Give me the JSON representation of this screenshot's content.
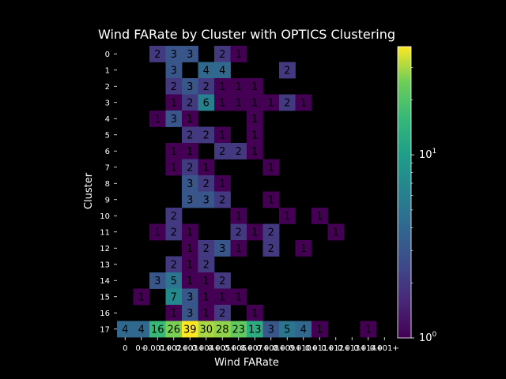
{
  "chart_data": {
    "type": "heatmap",
    "title": "Wind FARate by Cluster with OPTICS Clustering",
    "xlabel": "Wind FARate",
    "ylabel": "Cluster",
    "x_ticks": [
      "0",
      "0+",
      "0.001+",
      "0.002+",
      "0.003+",
      "0.004+",
      "0.005+",
      "0.006+",
      "0.007+",
      "0.008+",
      "0.009+",
      "0.010+",
      "0.011+",
      "0.012+",
      "0.013+",
      "0.014+",
      "0.001+"
    ],
    "y_ticks": [
      "0",
      "1",
      "2",
      "3",
      "4",
      "5",
      "6",
      "7",
      "8",
      "9",
      "10",
      "11",
      "12",
      "13",
      "14",
      "15",
      "16",
      "17"
    ],
    "colorbar": {
      "scale": "log",
      "min": 1,
      "max": 39,
      "tick_labels": [
        "10^0",
        "10^1"
      ],
      "colormap": "viridis"
    },
    "cells": [
      [
        0,
        2,
        2
      ],
      [
        0,
        3,
        3
      ],
      [
        0,
        4,
        3
      ],
      [
        0,
        6,
        2
      ],
      [
        0,
        7,
        1
      ],
      [
        1,
        3,
        3
      ],
      [
        1,
        5,
        4
      ],
      [
        1,
        6,
        4
      ],
      [
        1,
        10,
        2
      ],
      [
        2,
        3,
        2
      ],
      [
        2,
        4,
        3
      ],
      [
        2,
        5,
        2
      ],
      [
        2,
        6,
        1
      ],
      [
        2,
        7,
        1
      ],
      [
        2,
        8,
        1
      ],
      [
        3,
        3,
        1
      ],
      [
        3,
        4,
        2
      ],
      [
        3,
        5,
        6
      ],
      [
        3,
        6,
        1
      ],
      [
        3,
        7,
        1
      ],
      [
        3,
        8,
        1
      ],
      [
        3,
        9,
        1
      ],
      [
        3,
        10,
        2
      ],
      [
        3,
        11,
        1
      ],
      [
        4,
        2,
        1
      ],
      [
        4,
        3,
        3
      ],
      [
        4,
        4,
        1
      ],
      [
        4,
        8,
        1
      ],
      [
        5,
        4,
        2
      ],
      [
        5,
        5,
        2
      ],
      [
        5,
        6,
        1
      ],
      [
        5,
        8,
        1
      ],
      [
        6,
        3,
        1
      ],
      [
        6,
        4,
        1
      ],
      [
        6,
        6,
        2
      ],
      [
        6,
        7,
        2
      ],
      [
        6,
        8,
        1
      ],
      [
        7,
        3,
        1
      ],
      [
        7,
        4,
        2
      ],
      [
        7,
        5,
        1
      ],
      [
        7,
        9,
        1
      ],
      [
        8,
        4,
        3
      ],
      [
        8,
        5,
        2
      ],
      [
        8,
        6,
        1
      ],
      [
        9,
        4,
        3
      ],
      [
        9,
        5,
        3
      ],
      [
        9,
        6,
        2
      ],
      [
        9,
        9,
        1
      ],
      [
        10,
        3,
        2
      ],
      [
        10,
        7,
        1
      ],
      [
        10,
        10,
        1
      ],
      [
        10,
        12,
        1
      ],
      [
        11,
        2,
        1
      ],
      [
        11,
        3,
        2
      ],
      [
        11,
        4,
        1
      ],
      [
        11,
        7,
        2
      ],
      [
        11,
        8,
        1
      ],
      [
        11,
        9,
        2
      ],
      [
        11,
        13,
        1
      ],
      [
        12,
        4,
        1
      ],
      [
        12,
        5,
        2
      ],
      [
        12,
        6,
        3
      ],
      [
        12,
        7,
        1
      ],
      [
        12,
        9,
        2
      ],
      [
        12,
        11,
        1
      ],
      [
        13,
        3,
        2
      ],
      [
        13,
        4,
        1
      ],
      [
        13,
        5,
        2
      ],
      [
        14,
        2,
        3
      ],
      [
        14,
        3,
        5
      ],
      [
        14,
        4,
        1
      ],
      [
        14,
        5,
        1
      ],
      [
        14,
        6,
        2
      ],
      [
        15,
        1,
        1
      ],
      [
        15,
        3,
        7
      ],
      [
        15,
        4,
        3
      ],
      [
        15,
        5,
        1
      ],
      [
        15,
        6,
        1
      ],
      [
        15,
        7,
        1
      ],
      [
        16,
        3,
        1
      ],
      [
        16,
        4,
        3
      ],
      [
        16,
        5,
        1
      ],
      [
        16,
        6,
        2
      ],
      [
        16,
        8,
        1
      ],
      [
        17,
        0,
        4
      ],
      [
        17,
        1,
        4
      ],
      [
        17,
        2,
        16
      ],
      [
        17,
        3,
        26
      ],
      [
        17,
        4,
        39
      ],
      [
        17,
        5,
        30
      ],
      [
        17,
        6,
        28
      ],
      [
        17,
        7,
        23
      ],
      [
        17,
        8,
        13
      ],
      [
        17,
        9,
        3
      ],
      [
        17,
        10,
        5
      ],
      [
        17,
        11,
        4
      ],
      [
        17,
        12,
        1
      ],
      [
        17,
        15,
        1
      ]
    ]
  }
}
